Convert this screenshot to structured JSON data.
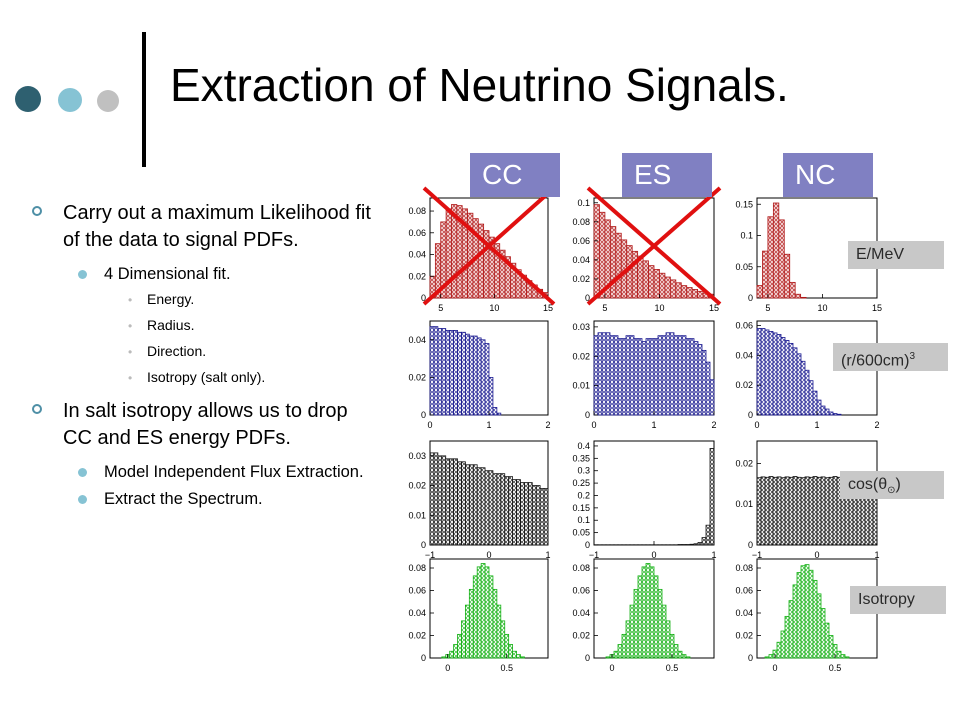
{
  "slide": {
    "title": "Extraction of Neutrino Signals.",
    "decor_dot_colors": [
      "#2e6070",
      "#86c3d4",
      "#c0c0c0"
    ]
  },
  "bullets": [
    {
      "level": 1,
      "text": "Carry out a maximum Likelihood fit of the data to signal PDFs."
    },
    {
      "level": 2,
      "text": "4 Dimensional fit."
    },
    {
      "level": 3,
      "text": "Energy."
    },
    {
      "level": 3,
      "text": "Radius."
    },
    {
      "level": 3,
      "text": "Direction."
    },
    {
      "level": 3,
      "text": "Isotropy (salt only)."
    },
    {
      "level": 1,
      "text": "In salt isotropy allows us to drop CC and ES energy PDFs."
    },
    {
      "level": 2,
      "text": "Model Independent Flux Extraction."
    },
    {
      "level": 2,
      "text": "Extract the Spectrum."
    }
  ],
  "columns": [
    {
      "label": "CC"
    },
    {
      "label": "ES"
    },
    {
      "label": "NC"
    }
  ],
  "rows": [
    {
      "label": "E/MeV"
    },
    {
      "label": "(r/600cm)",
      "sup": "3"
    },
    {
      "label": "cos(θ",
      "sub": "⊙",
      "suffix": ")"
    },
    {
      "label": "Isotropy"
    }
  ],
  "colors": {
    "energy": "#b01818",
    "radius": "#1a1a90",
    "direction": "#111111",
    "isotropy": "#12b012",
    "cross": "#e01010",
    "header_bg": "#8080c2",
    "label_bg": "#c8c8c8"
  },
  "chart_data": [
    {
      "type": "bar",
      "row": "energy",
      "column": "CC",
      "crossed_out": true,
      "x_range": [
        4,
        15
      ],
      "y_range": [
        0,
        0.092
      ],
      "x_ticks": [
        "5",
        "10",
        "15"
      ],
      "y_ticks": [
        "0",
        "0.02",
        "0.04",
        "0.06",
        "0.08"
      ],
      "values": [
        0.02,
        0.05,
        0.07,
        0.082,
        0.086,
        0.085,
        0.082,
        0.078,
        0.073,
        0.068,
        0.062,
        0.056,
        0.05,
        0.044,
        0.038,
        0.032,
        0.026,
        0.021,
        0.016,
        0.012,
        0.008,
        0.005
      ]
    },
    {
      "type": "bar",
      "row": "energy",
      "column": "ES",
      "crossed_out": true,
      "x_range": [
        4,
        15
      ],
      "y_range": [
        0,
        0.105
      ],
      "x_ticks": [
        "5",
        "10",
        "15"
      ],
      "y_ticks": [
        "0",
        "0.02",
        "0.04",
        "0.06",
        "0.08",
        "0.1"
      ],
      "values": [
        0.098,
        0.09,
        0.082,
        0.075,
        0.068,
        0.061,
        0.055,
        0.049,
        0.044,
        0.039,
        0.034,
        0.03,
        0.026,
        0.022,
        0.019,
        0.016,
        0.013,
        0.011,
        0.009,
        0.007,
        0.005,
        0.004
      ]
    },
    {
      "type": "bar",
      "row": "energy",
      "column": "NC",
      "crossed_out": false,
      "x_range": [
        4,
        15
      ],
      "y_range": [
        0,
        0.16
      ],
      "x_ticks": [
        "5",
        "10",
        "15"
      ],
      "y_ticks": [
        "0",
        "0.05",
        "0.1",
        "0.15"
      ],
      "values": [
        0.02,
        0.075,
        0.13,
        0.152,
        0.125,
        0.07,
        0.025,
        0.006,
        0.001,
        0,
        0,
        0,
        0,
        0,
        0,
        0,
        0,
        0,
        0,
        0,
        0,
        0
      ]
    },
    {
      "type": "bar",
      "row": "radius",
      "column": "CC",
      "x_range": [
        0,
        2
      ],
      "y_range": [
        0,
        0.05
      ],
      "x_ticks": [
        "0",
        "1",
        "2"
      ],
      "y_ticks": [
        "0",
        "0.02",
        "0.04"
      ],
      "values": [
        0.047,
        0.047,
        0.046,
        0.046,
        0.045,
        0.045,
        0.045,
        0.044,
        0.044,
        0.043,
        0.042,
        0.042,
        0.041,
        0.04,
        0.038,
        0.02,
        0.004,
        0.001,
        0,
        0,
        0,
        0,
        0,
        0,
        0,
        0,
        0,
        0,
        0,
        0
      ]
    },
    {
      "type": "bar",
      "row": "radius",
      "column": "ES",
      "x_range": [
        0,
        2
      ],
      "y_range": [
        0,
        0.032
      ],
      "x_ticks": [
        "0",
        "1",
        "2"
      ],
      "y_ticks": [
        "0",
        "0.01",
        "0.02",
        "0.03"
      ],
      "values": [
        0.027,
        0.028,
        0.028,
        0.028,
        0.027,
        0.027,
        0.026,
        0.026,
        0.027,
        0.027,
        0.026,
        0.026,
        0.025,
        0.026,
        0.026,
        0.026,
        0.027,
        0.027,
        0.028,
        0.028,
        0.027,
        0.027,
        0.027,
        0.026,
        0.026,
        0.025,
        0.024,
        0.022,
        0.018,
        0.012
      ]
    },
    {
      "type": "bar",
      "row": "radius",
      "column": "NC",
      "x_range": [
        0,
        2
      ],
      "y_range": [
        0,
        0.063
      ],
      "x_ticks": [
        "0",
        "1",
        "2"
      ],
      "y_ticks": [
        "0",
        "0.02",
        "0.04",
        "0.06"
      ],
      "values": [
        0.058,
        0.058,
        0.057,
        0.056,
        0.055,
        0.054,
        0.052,
        0.05,
        0.048,
        0.045,
        0.041,
        0.036,
        0.03,
        0.023,
        0.016,
        0.01,
        0.006,
        0.004,
        0.002,
        0.001,
        0.0005,
        0,
        0,
        0,
        0,
        0,
        0,
        0,
        0,
        0
      ]
    },
    {
      "type": "bar",
      "row": "direction",
      "column": "CC",
      "x_range": [
        -1,
        1
      ],
      "y_range": [
        0,
        0.035
      ],
      "x_ticks": [
        "−1",
        "0",
        "1"
      ],
      "y_ticks": [
        "0",
        "0.01",
        "0.02",
        "0.03"
      ],
      "values": [
        0.031,
        0.031,
        0.03,
        0.03,
        0.029,
        0.029,
        0.029,
        0.028,
        0.028,
        0.027,
        0.027,
        0.027,
        0.026,
        0.026,
        0.025,
        0.025,
        0.024,
        0.024,
        0.024,
        0.023,
        0.023,
        0.022,
        0.022,
        0.021,
        0.021,
        0.021,
        0.02,
        0.02,
        0.019,
        0.019
      ]
    },
    {
      "type": "bar",
      "row": "direction",
      "column": "ES",
      "x_range": [
        -1,
        1
      ],
      "y_range": [
        0,
        0.42
      ],
      "x_ticks": [
        "−1",
        "0",
        "1"
      ],
      "y_ticks": [
        "0",
        "0.05",
        "0.1",
        "0.15",
        "0.2",
        "0.25",
        "0.3",
        "0.35",
        "0.4"
      ],
      "values": [
        0.001,
        0.001,
        0.001,
        0.001,
        0.001,
        0.001,
        0.001,
        0.001,
        0.001,
        0.001,
        0.001,
        0.001,
        0.001,
        0.001,
        0.001,
        0.001,
        0.001,
        0.001,
        0.001,
        0.001,
        0.001,
        0.002,
        0.002,
        0.002,
        0.003,
        0.005,
        0.01,
        0.03,
        0.08,
        0.39
      ]
    },
    {
      "type": "bar",
      "row": "direction",
      "column": "NC",
      "x_range": [
        -1,
        1
      ],
      "y_range": [
        0,
        0.0255
      ],
      "x_ticks": [
        "−1",
        "0",
        "1"
      ],
      "y_ticks": [
        "0",
        "0.01",
        "0.02"
      ],
      "values": [
        0.0165,
        0.0167,
        0.0166,
        0.0168,
        0.0166,
        0.0167,
        0.0165,
        0.0167,
        0.0166,
        0.0168,
        0.0166,
        0.0165,
        0.0167,
        0.0166,
        0.0168,
        0.0166,
        0.0167,
        0.0165,
        0.0166,
        0.0168,
        0.0166,
        0.0167,
        0.0165,
        0.0167,
        0.0166,
        0.0168,
        0.0166,
        0.0167,
        0.0165,
        0.0166
      ]
    },
    {
      "type": "bar",
      "row": "isotropy",
      "column": "CC",
      "x_range": [
        -0.15,
        0.85
      ],
      "y_range": [
        0,
        0.088
      ],
      "x_ticks": [
        "0",
        "0.5"
      ],
      "y_ticks": [
        "0",
        "0.02",
        "0.04",
        "0.06",
        "0.08"
      ],
      "values": [
        0,
        0,
        0,
        0.001,
        0.003,
        0.006,
        0.012,
        0.021,
        0.033,
        0.047,
        0.061,
        0.073,
        0.081,
        0.084,
        0.081,
        0.073,
        0.061,
        0.047,
        0.033,
        0.021,
        0.012,
        0.006,
        0.003,
        0.001,
        0,
        0,
        0,
        0,
        0,
        0
      ]
    },
    {
      "type": "bar",
      "row": "isotropy",
      "column": "ES",
      "x_range": [
        -0.15,
        0.85
      ],
      "y_range": [
        0,
        0.088
      ],
      "x_ticks": [
        "0",
        "0.5"
      ],
      "y_ticks": [
        "0",
        "0.02",
        "0.04",
        "0.06",
        "0.08"
      ],
      "values": [
        0,
        0,
        0,
        0.001,
        0.003,
        0.006,
        0.012,
        0.021,
        0.033,
        0.047,
        0.061,
        0.073,
        0.081,
        0.084,
        0.081,
        0.073,
        0.061,
        0.047,
        0.033,
        0.021,
        0.012,
        0.006,
        0.003,
        0.001,
        0,
        0,
        0,
        0,
        0,
        0
      ]
    },
    {
      "type": "bar",
      "row": "isotropy",
      "column": "NC",
      "x_range": [
        -0.15,
        0.85
      ],
      "y_range": [
        0,
        0.088
      ],
      "x_ticks": [
        "0",
        "0.5"
      ],
      "y_ticks": [
        "0",
        "0.02",
        "0.04",
        "0.06",
        "0.08"
      ],
      "values": [
        0,
        0,
        0.001,
        0.003,
        0.007,
        0.014,
        0.024,
        0.037,
        0.051,
        0.065,
        0.076,
        0.082,
        0.083,
        0.078,
        0.069,
        0.057,
        0.044,
        0.031,
        0.02,
        0.012,
        0.006,
        0.003,
        0.001,
        0,
        0,
        0,
        0,
        0,
        0,
        0
      ]
    }
  ]
}
